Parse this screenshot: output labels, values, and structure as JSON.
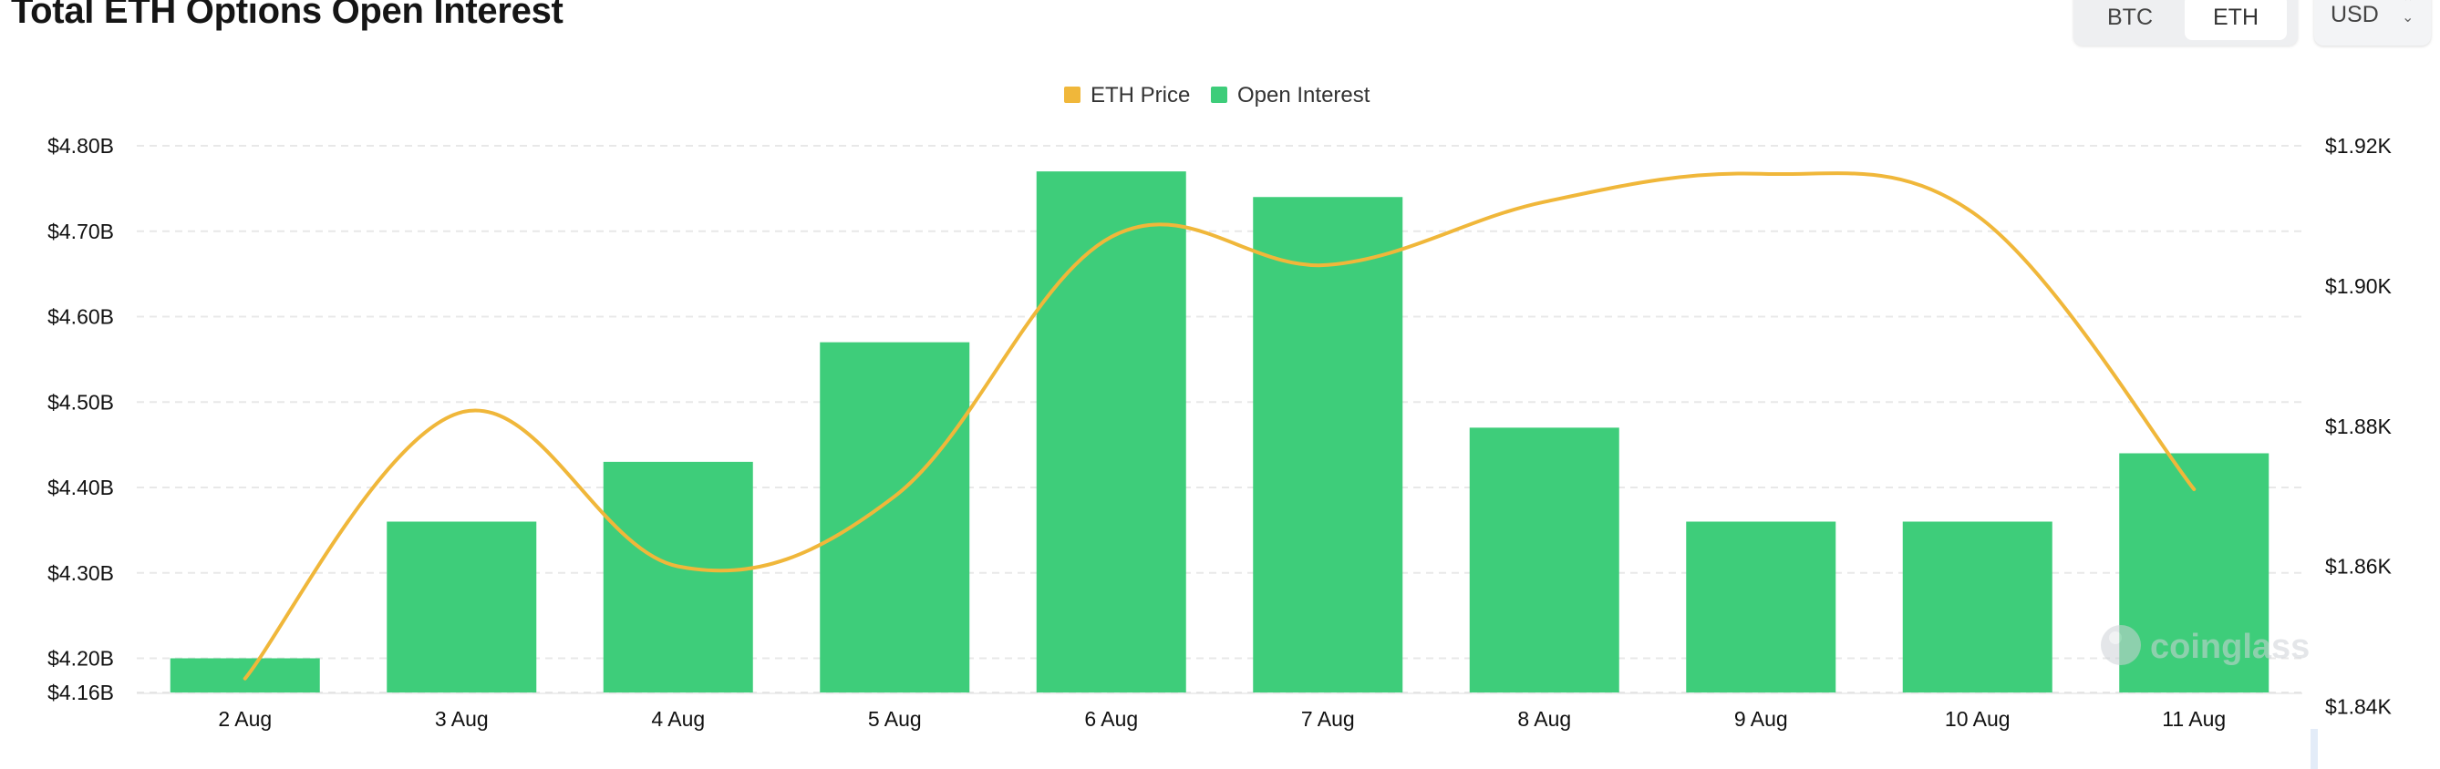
{
  "header": {
    "title": "Total ETH Options Open Interest",
    "asset_tabs": [
      "BTC",
      "ETH"
    ],
    "selected_asset": "ETH",
    "currency": "USD"
  },
  "watermark": "coinglass",
  "chart_data": {
    "type": "bar",
    "categories": [
      "2 Aug",
      "3 Aug",
      "4 Aug",
      "5 Aug",
      "6 Aug",
      "7 Aug",
      "8 Aug",
      "9 Aug",
      "10 Aug",
      "11 Aug"
    ],
    "legend": [
      "ETH Price",
      "Open Interest"
    ],
    "legend_position": "top-center",
    "series": [
      {
        "name": "Open Interest",
        "kind": "bar",
        "axis": "left",
        "color": "#3ecd7a",
        "values": [
          4.2,
          4.36,
          4.43,
          4.57,
          4.77,
          4.74,
          4.47,
          4.36,
          4.36,
          4.44
        ]
      },
      {
        "name": "ETH Price",
        "kind": "line",
        "axis": "right",
        "color": "#f0b73a",
        "values": [
          1844,
          1882,
          1860,
          1870,
          1907,
          1903,
          1912,
          1916,
          1910,
          1871
        ]
      }
    ],
    "y_left": {
      "ticks": [
        "$4.80B",
        "$4.70B",
        "$4.60B",
        "$4.50B",
        "$4.40B",
        "$4.30B",
        "$4.20B",
        "$4.16B"
      ],
      "tick_values": [
        4.8,
        4.7,
        4.6,
        4.5,
        4.4,
        4.3,
        4.2,
        4.16
      ],
      "range": [
        4.16,
        4.8
      ]
    },
    "y_right": {
      "ticks": [
        "$1.92K",
        "$1.90K",
        "$1.88K",
        "$1.86K",
        "$1.84K"
      ],
      "tick_values": [
        1920,
        1900,
        1880,
        1860,
        1840
      ],
      "range": [
        1835,
        1920
      ]
    },
    "grid": "horizontal-dashed"
  }
}
